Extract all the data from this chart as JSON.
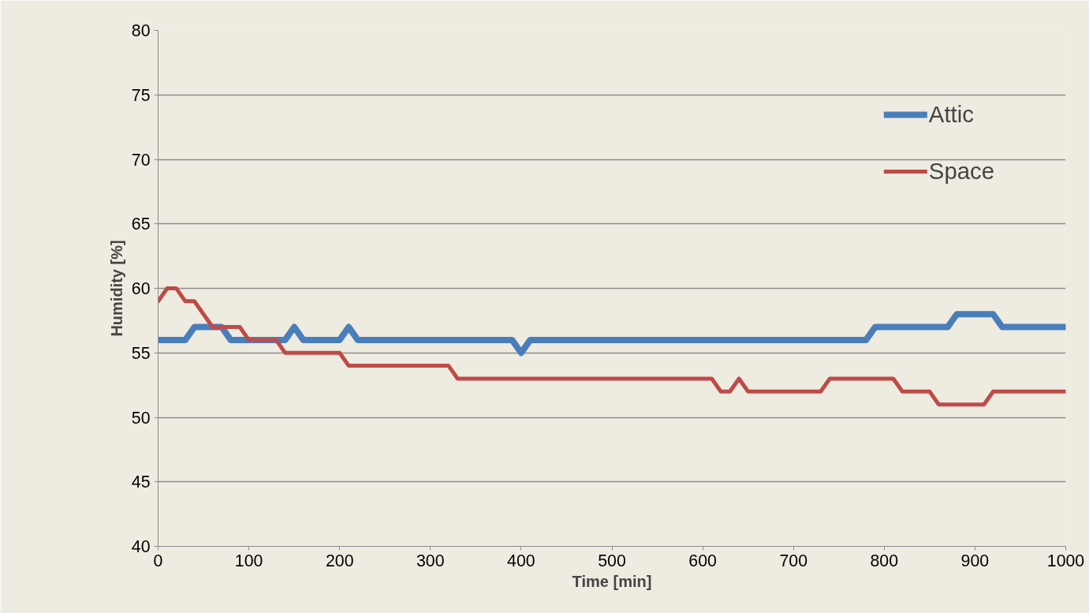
{
  "chart_data": {
    "type": "line",
    "xlabel": "Time [min]",
    "ylabel": "Humidity [%]",
    "x": [
      0,
      10,
      20,
      30,
      40,
      50,
      60,
      70,
      80,
      90,
      100,
      110,
      120,
      130,
      140,
      150,
      160,
      170,
      180,
      190,
      200,
      210,
      220,
      230,
      240,
      250,
      260,
      270,
      280,
      290,
      300,
      310,
      320,
      330,
      340,
      350,
      360,
      370,
      380,
      390,
      400,
      410,
      420,
      430,
      440,
      450,
      460,
      470,
      480,
      490,
      500,
      510,
      520,
      530,
      540,
      550,
      560,
      570,
      580,
      590,
      600,
      610,
      620,
      630,
      640,
      650,
      660,
      670,
      680,
      690,
      700,
      710,
      720,
      730,
      740,
      750,
      760,
      770,
      780,
      790,
      800,
      810,
      820,
      830,
      840,
      850,
      860,
      870,
      880,
      890,
      900,
      910,
      920,
      930,
      940,
      950,
      960,
      970,
      980,
      990,
      1000
    ],
    "series": [
      {
        "name": "Attic",
        "color": "#4a7ebb",
        "values": [
          56,
          56,
          56,
          56,
          57,
          57,
          57,
          57,
          56,
          56,
          56,
          56,
          56,
          56,
          56,
          57,
          56,
          56,
          56,
          56,
          56,
          57,
          56,
          56,
          56,
          56,
          56,
          56,
          56,
          56,
          56,
          56,
          56,
          56,
          56,
          56,
          56,
          56,
          56,
          56,
          55,
          56,
          56,
          56,
          56,
          56,
          56,
          56,
          56,
          56,
          56,
          56,
          56,
          56,
          56,
          56,
          56,
          56,
          56,
          56,
          56,
          56,
          56,
          56,
          56,
          56,
          56,
          56,
          56,
          56,
          56,
          56,
          56,
          56,
          56,
          56,
          56,
          56,
          56,
          57,
          57,
          57,
          57,
          57,
          57,
          57,
          57,
          57,
          58,
          58,
          58,
          58,
          58,
          57,
          57,
          57,
          57,
          57,
          57,
          57,
          57
        ]
      },
      {
        "name": "Space",
        "color": "#be4b48",
        "values": [
          59,
          60,
          60,
          59,
          59,
          58,
          57,
          57,
          57,
          57,
          56,
          56,
          56,
          56,
          55,
          55,
          55,
          55,
          55,
          55,
          55,
          54,
          54,
          54,
          54,
          54,
          54,
          54,
          54,
          54,
          54,
          54,
          54,
          53,
          53,
          53,
          53,
          53,
          53,
          53,
          53,
          53,
          53,
          53,
          53,
          53,
          53,
          53,
          53,
          53,
          53,
          53,
          53,
          53,
          53,
          53,
          53,
          53,
          53,
          53,
          53,
          53,
          52,
          52,
          53,
          52,
          52,
          52,
          52,
          52,
          52,
          52,
          52,
          52,
          53,
          53,
          53,
          53,
          53,
          53,
          53,
          53,
          52,
          52,
          52,
          52,
          51,
          51,
          51,
          51,
          51,
          51,
          52,
          52,
          52,
          52,
          52,
          52,
          52,
          52,
          52
        ]
      }
    ],
    "xlim": [
      0,
      1000
    ],
    "xticks": [
      0,
      100,
      200,
      300,
      400,
      500,
      600,
      700,
      800,
      900,
      1000
    ],
    "ylim": [
      40,
      80
    ],
    "yticks": [
      40,
      45,
      50,
      55,
      60,
      65,
      70,
      75,
      80
    ],
    "grid": "y",
    "legend": "top right",
    "marker": "none",
    "line_style": "solid"
  }
}
